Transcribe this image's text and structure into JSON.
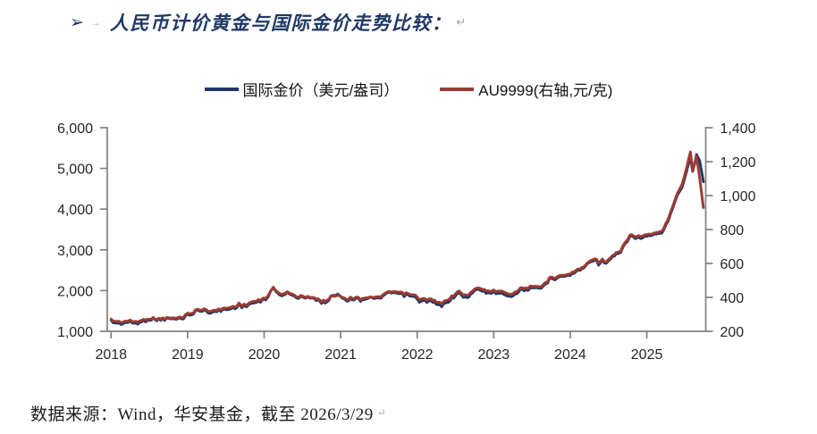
{
  "title": {
    "bullet": "➢",
    "tab_mark": "→",
    "text": "人民币计价黄金与国际金价走势比较：",
    "return_mark": "↵"
  },
  "legend": [
    {
      "label": "国际金价（美元/盎司）",
      "color": "#1F3864"
    },
    {
      "label": "AU9999(右轴,元/克)",
      "color": "#9D3B33"
    }
  ],
  "footer": {
    "text": "数据来源：Wind，华安基金，截至 2026/3/29",
    "return_mark": "↵"
  },
  "chart_data": {
    "type": "line",
    "title": "人民币计价黄金与国际金价走势比较",
    "grid": false,
    "legend_position": "top",
    "axis_color": "#808080",
    "tick_label_color": "#262626",
    "x_range": [
      2018.45,
      2026.27
    ],
    "x_ticks": {
      "values": [
        2018.5,
        2019.5,
        2020.5,
        2021.5,
        2022.5,
        2023.5,
        2024.5,
        2025.5
      ],
      "labels": [
        "2018",
        "2019",
        "2020",
        "2021",
        "2022",
        "2023",
        "2024",
        "2025"
      ]
    },
    "left_axis": {
      "title": "国际金价（美元/盎司）",
      "min": 1000,
      "max": 6000,
      "tick_values": [
        1000,
        2000,
        3000,
        4000,
        5000,
        6000
      ],
      "tick_labels": [
        "1,000",
        "2,000",
        "3,000",
        "4,000",
        "5,000",
        "6,000"
      ]
    },
    "right_axis": {
      "title": "AU9999(元/克)",
      "min": 200,
      "max": 1400,
      "tick_values": [
        200,
        400,
        600,
        800,
        1000,
        1200,
        1400
      ],
      "tick_labels": [
        "200",
        "400",
        "600",
        "800",
        "1,000",
        "1,200",
        "1,400"
      ]
    },
    "t": [
      2018.5,
      2018.58,
      2018.65,
      2018.75,
      2018.85,
      2018.95,
      2019.05,
      2019.15,
      2019.25,
      2019.33,
      2019.42,
      2019.5,
      2019.58,
      2019.63,
      2019.72,
      2019.8,
      2019.88,
      2019.96,
      2020.04,
      2020.12,
      2020.17,
      2020.21,
      2020.27,
      2020.35,
      2020.45,
      2020.52,
      2020.58,
      2020.62,
      2020.68,
      2020.73,
      2020.8,
      2020.86,
      2020.92,
      2020.98,
      2021.04,
      2021.1,
      2021.18,
      2021.25,
      2021.32,
      2021.4,
      2021.46,
      2021.52,
      2021.58,
      2021.65,
      2021.7,
      2021.76,
      2021.83,
      2021.88,
      2021.94,
      2022.0,
      2022.08,
      2022.16,
      2022.2,
      2022.26,
      2022.33,
      2022.4,
      2022.47,
      2022.53,
      2022.6,
      2022.68,
      2022.75,
      2022.82,
      2022.88,
      2022.95,
      2023.0,
      2023.05,
      2023.13,
      2023.2,
      2023.27,
      2023.33,
      2023.4,
      2023.47,
      2023.53,
      2023.6,
      2023.67,
      2023.73,
      2023.8,
      2023.85,
      2023.92,
      2023.98,
      2024.05,
      2024.12,
      2024.18,
      2024.25,
      2024.3,
      2024.36,
      2024.42,
      2024.5,
      2024.57,
      2024.63,
      2024.7,
      2024.77,
      2024.82,
      2024.87,
      2024.92,
      2024.97,
      2025.03,
      2025.1,
      2025.16,
      2025.22,
      2025.28,
      2025.35,
      2025.42,
      2025.5,
      2025.58,
      2025.65,
      2025.72,
      2025.78,
      2025.84,
      2025.9,
      2025.96,
      2026.02,
      2026.07,
      2026.1,
      2026.15,
      2026.19,
      2026.24
    ],
    "series": [
      {
        "name": "国际金价（美元/盎司）",
        "axis": "left",
        "color": "#1F3864",
        "values": [
          1250,
          1215,
          1192,
          1205,
          1218,
          1258,
          1292,
          1308,
          1295,
          1282,
          1330,
          1412,
          1422,
          1505,
          1512,
          1488,
          1462,
          1512,
          1562,
          1592,
          1642,
          1572,
          1618,
          1712,
          1732,
          1772,
          1942,
          2052,
          1942,
          1902,
          1918,
          1872,
          1802,
          1882,
          1852,
          1838,
          1742,
          1712,
          1752,
          1892,
          1902,
          1812,
          1782,
          1812,
          1802,
          1752,
          1792,
          1862,
          1802,
          1812,
          1872,
          1942,
          1962,
          1932,
          1882,
          1852,
          1832,
          1762,
          1742,
          1712,
          1662,
          1642,
          1712,
          1782,
          1872,
          1932,
          1842,
          1892,
          1992,
          2022,
          1972,
          1942,
          1922,
          1962,
          1912,
          1852,
          1932,
          1992,
          2042,
          2062,
          2032,
          2042,
          2162,
          2342,
          2302,
          2352,
          2322,
          2392,
          2472,
          2522,
          2572,
          2742,
          2782,
          2672,
          2722,
          2632,
          2752,
          2902,
          2952,
          3152,
          3322,
          3282,
          3312,
          3342,
          3322,
          3382,
          3482,
          3722,
          4052,
          4302,
          4552,
          4952,
          5282,
          4952,
          5342,
          5152,
          4652
        ]
      },
      {
        "name": "AU9999(右轴,元/克)",
        "axis": "right",
        "color": "#9D3B33",
        "values": [
          268,
          261,
          256,
          258,
          261,
          270,
          274,
          278,
          276,
          274,
          285,
          306,
          309,
          327,
          330,
          325,
          320,
          331,
          343,
          350,
          360,
          347,
          356,
          379,
          384,
          394,
          430,
          454,
          432,
          424,
          426,
          417,
          400,
          416,
          408,
          404,
          386,
          379,
          388,
          410,
          410,
          400,
          395,
          401,
          399,
          389,
          398,
          406,
          399,
          403,
          417,
          432,
          436,
          432,
          422,
          415,
          411,
          395,
          390,
          384,
          373,
          368,
          384,
          400,
          420,
          434,
          414,
          426,
          448,
          455,
          444,
          437,
          433,
          442,
          431,
          417,
          436,
          449,
          460,
          465,
          458,
          460,
          487,
          528,
          520,
          531,
          525,
          541,
          560,
          572,
          584,
          624,
          634,
          610,
          621,
          602,
          629,
          664,
          676,
          724,
          765,
          757,
          764,
          771,
          767,
          781,
          805,
          863,
          942,
          1004,
          1068,
          1166,
          1258,
          1152,
          1232,
          1097,
          925
        ]
      }
    ]
  }
}
